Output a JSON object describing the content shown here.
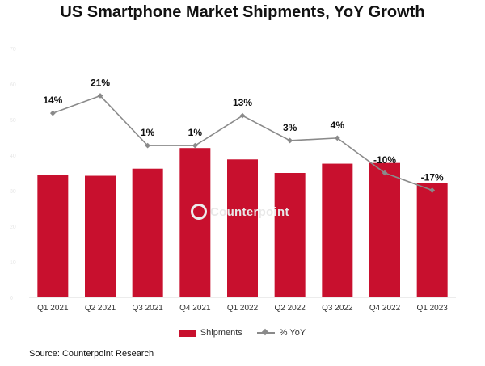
{
  "chart_data": {
    "type": "bar",
    "title": "US Smartphone Market Shipments, YoY Growth",
    "categories": [
      "Q1 2021",
      "Q2 2021",
      "Q3 2021",
      "Q4 2021",
      "Q1 2022",
      "Q2 2022",
      "Q3 2022",
      "Q4 2022",
      "Q1 2023"
    ],
    "series": [
      {
        "name": "Shipments",
        "type": "bar",
        "axis": "left",
        "color": "#c8102e",
        "values": [
          34.5,
          34.2,
          36.2,
          42.0,
          38.8,
          35.0,
          37.6,
          37.8,
          32.2
        ]
      },
      {
        "name": "% YoY",
        "type": "line",
        "axis": "right",
        "color": "#8a8a8a",
        "values": [
          14,
          21,
          1,
          1,
          13,
          3,
          4,
          -10,
          -17
        ],
        "labels": [
          "14%",
          "21%",
          "1%",
          "1%",
          "13%",
          "3%",
          "4%",
          "-10%",
          "-17%"
        ]
      }
    ],
    "ylim": [
      0,
      70
    ],
    "yticks": [
      "0",
      "10",
      "20",
      "30",
      "40",
      "50",
      "60",
      "70"
    ],
    "y2lim": [
      -60,
      40
    ],
    "legend": "bottom",
    "grid": false
  },
  "watermark": "Counterpoint",
  "source": "Source: Counterpoint Research"
}
